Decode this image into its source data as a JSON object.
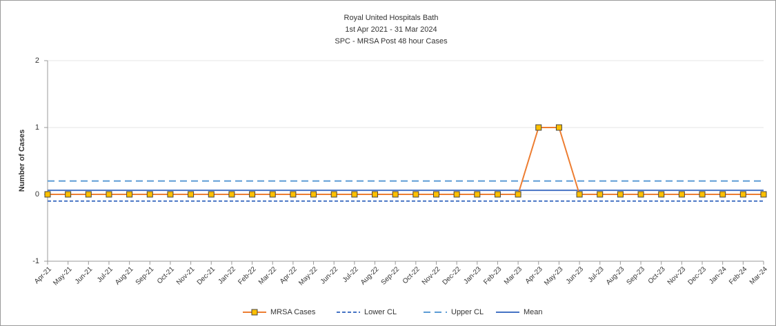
{
  "chart_data": {
    "type": "line",
    "title": "Royal United Hospitals Bath",
    "subtitle": [
      "1st Apr 2021 -  31 Mar 2024",
      "SPC - MRSA Post 48 hour Cases"
    ],
    "y_label": "Number of Cases",
    "categories": [
      "Apr-21",
      "May-21",
      "Jun-21",
      "Jul-21",
      "Aug-21",
      "Sep-21",
      "Oct-21",
      "Nov-21",
      "Dec-21",
      "Jan-22",
      "Feb-22",
      "Mar-22",
      "Apr-22",
      "May-22",
      "Jun-22",
      "Jul-22",
      "Aug-22",
      "Sep-22",
      "Oct-22",
      "Nov-22",
      "Dec-22",
      "Jan-23",
      "Feb-23",
      "Mar-23",
      "Apr-23",
      "May-23",
      "Jun-23",
      "Jul-23",
      "Aug-23",
      "Sep-23",
      "Oct-23",
      "Nov-23",
      "Dec-23",
      "Jan-24",
      "Feb-24",
      "Mar-24"
    ],
    "series": [
      {
        "name": "MRSA Cases",
        "color": "#ed7d31",
        "marker_color": "#ffc000",
        "style": "marker",
        "values": [
          0,
          0,
          0,
          0,
          0,
          0,
          0,
          0,
          0,
          0,
          0,
          0,
          0,
          0,
          0,
          0,
          0,
          0,
          0,
          0,
          0,
          0,
          0,
          0,
          1,
          1,
          0,
          0,
          0,
          0,
          0,
          0,
          0,
          0,
          0,
          0
        ]
      },
      {
        "name": "Lower CL",
        "color": "#4472c4",
        "style": "dot",
        "values": [
          -0.1,
          -0.1,
          -0.1,
          -0.1,
          -0.1,
          -0.1,
          -0.1,
          -0.1,
          -0.1,
          -0.1,
          -0.1,
          -0.1,
          -0.1,
          -0.1,
          -0.1,
          -0.1,
          -0.1,
          -0.1,
          -0.1,
          -0.1,
          -0.1,
          -0.1,
          -0.1,
          -0.1,
          -0.1,
          -0.1,
          -0.1,
          -0.1,
          -0.1,
          -0.1,
          -0.1,
          -0.1,
          -0.1,
          -0.1,
          -0.1,
          -0.1
        ]
      },
      {
        "name": "Upper CL",
        "color": "#5b9bd5",
        "style": "dash",
        "values": [
          0.2,
          0.2,
          0.2,
          0.2,
          0.2,
          0.2,
          0.2,
          0.2,
          0.2,
          0.2,
          0.2,
          0.2,
          0.2,
          0.2,
          0.2,
          0.2,
          0.2,
          0.2,
          0.2,
          0.2,
          0.2,
          0.2,
          0.2,
          0.2,
          0.2,
          0.2,
          0.2,
          0.2,
          0.2,
          0.2,
          0.2,
          0.2,
          0.2,
          0.2,
          0.2,
          0.2
        ]
      },
      {
        "name": "Mean",
        "color": "#4472c4",
        "style": "solid",
        "values": [
          0.06,
          0.06,
          0.06,
          0.06,
          0.06,
          0.06,
          0.06,
          0.06,
          0.06,
          0.06,
          0.06,
          0.06,
          0.06,
          0.06,
          0.06,
          0.06,
          0.06,
          0.06,
          0.06,
          0.06,
          0.06,
          0.06,
          0.06,
          0.06,
          0.06,
          0.06,
          0.06,
          0.06,
          0.06,
          0.06,
          0.06,
          0.06,
          0.06,
          0.06,
          0.06,
          0.06
        ]
      }
    ],
    "ylim": [
      -1,
      2
    ],
    "yticks": [
      -1,
      0,
      1,
      2
    ],
    "grid": true,
    "legend": "bottom"
  }
}
